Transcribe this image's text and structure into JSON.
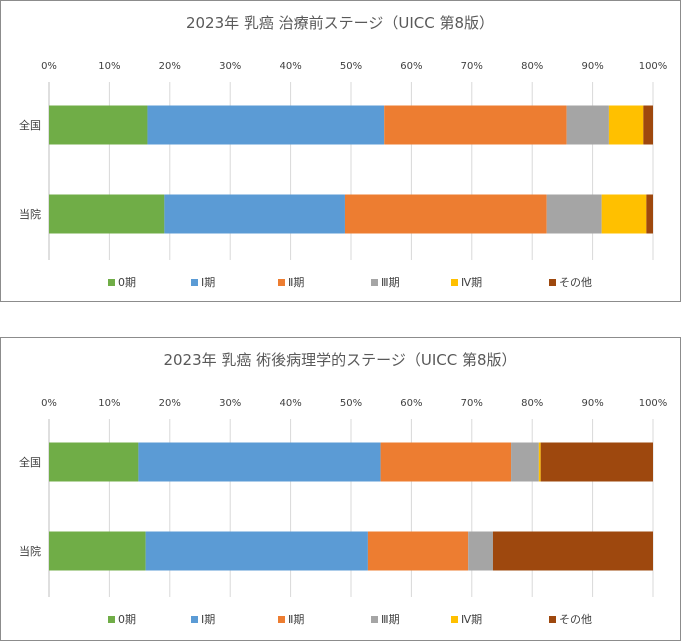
{
  "chart_data": [
    {
      "type": "bar",
      "orientation": "horizontal",
      "stacked": "percent",
      "title": "2023年 乳癌 治療前ステージ（UICC 第8版）",
      "xlim": [
        0,
        100
      ],
      "ticks": [
        "0%",
        "10%",
        "20%",
        "30%",
        "40%",
        "50%",
        "60%",
        "70%",
        "80%",
        "90%",
        "100%"
      ],
      "categories": [
        "全国",
        "当院"
      ],
      "legend_position": "bottom",
      "series": [
        {
          "name": "0期",
          "color": "#70ad47",
          "values": [
            16.3,
            19.1
          ]
        },
        {
          "name": "Ⅰ期",
          "color": "#5b9bd5",
          "values": [
            39.2,
            29.9
          ]
        },
        {
          "name": "Ⅱ期",
          "color": "#ed7d31",
          "values": [
            30.2,
            33.4
          ]
        },
        {
          "name": "Ⅲ期",
          "color": "#a5a5a5",
          "values": [
            7.0,
            9.1
          ]
        },
        {
          "name": "Ⅳ期",
          "color": "#ffc000",
          "values": [
            5.7,
            7.4
          ]
        },
        {
          "name": "その他",
          "color": "#9e480e",
          "values": [
            1.6,
            1.1
          ]
        }
      ]
    },
    {
      "type": "bar",
      "orientation": "horizontal",
      "stacked": "percent",
      "title": "2023年 乳癌 術後病理学的ステージ（UICC 第8版）",
      "xlim": [
        0,
        100
      ],
      "ticks": [
        "0%",
        "10%",
        "20%",
        "30%",
        "40%",
        "50%",
        "60%",
        "70%",
        "80%",
        "90%",
        "100%"
      ],
      "categories": [
        "全国",
        "当院"
      ],
      "legend_position": "bottom",
      "series": [
        {
          "name": "0期",
          "color": "#70ad47",
          "values": [
            14.8,
            16.0
          ]
        },
        {
          "name": "Ⅰ期",
          "color": "#5b9bd5",
          "values": [
            40.1,
            36.8
          ]
        },
        {
          "name": "Ⅱ期",
          "color": "#ed7d31",
          "values": [
            21.6,
            16.6
          ]
        },
        {
          "name": "Ⅲ期",
          "color": "#a5a5a5",
          "values": [
            4.6,
            4.1
          ]
        },
        {
          "name": "Ⅳ期",
          "color": "#ffc000",
          "values": [
            0.3,
            0.0
          ]
        },
        {
          "name": "その他",
          "color": "#9e480e",
          "values": [
            18.6,
            26.5
          ]
        }
      ]
    }
  ]
}
